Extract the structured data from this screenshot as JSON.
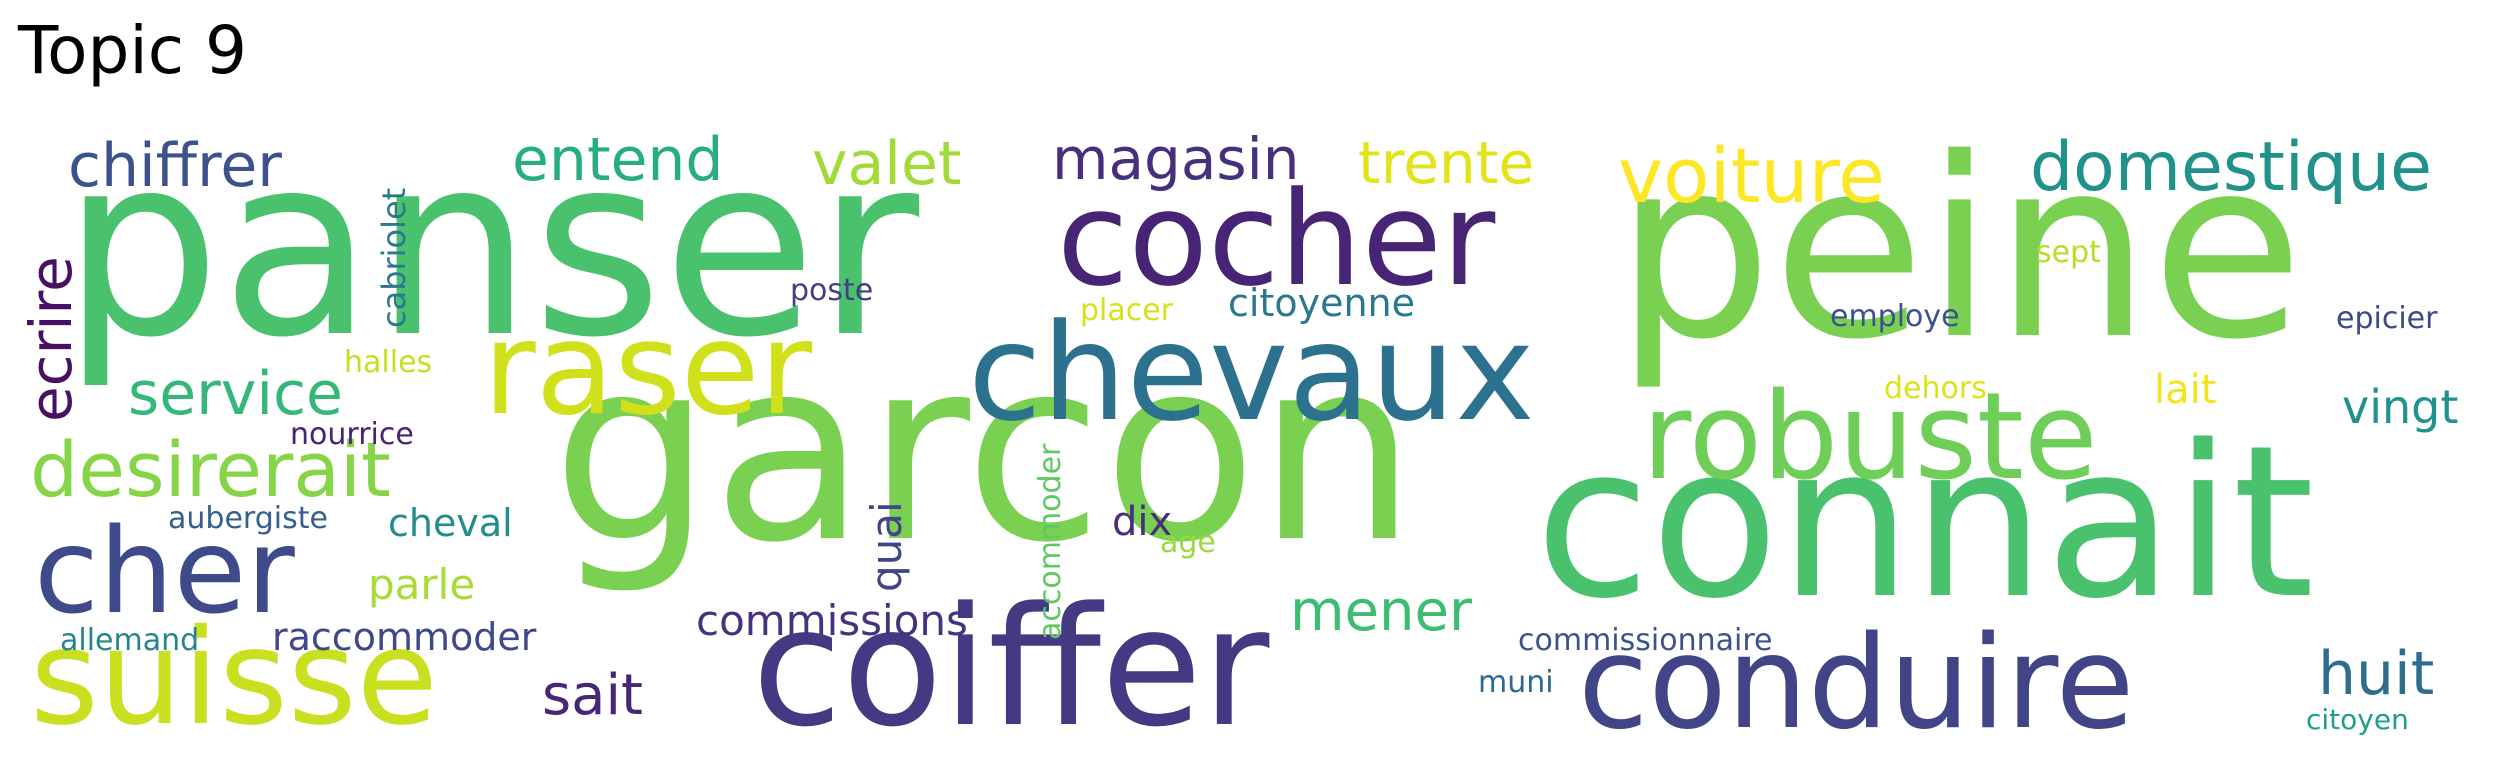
{
  "title": "Topic 9",
  "words": {
    "panser": {
      "text": "panser",
      "color": "#4ac16d"
    },
    "peine": {
      "text": "peine",
      "color": "#7ad151"
    },
    "garcon": {
      "text": "garcon",
      "color": "#7ad151"
    },
    "connait": {
      "text": "connait",
      "color": "#4ac16d"
    },
    "coiffer": {
      "text": "coiffer",
      "color": "#443983"
    },
    "conduire": {
      "text": "conduire",
      "color": "#414487"
    },
    "chevaux": {
      "text": "chevaux",
      "color": "#2c728e"
    },
    "cocher": {
      "text": "cocher",
      "color": "#482475"
    },
    "raser": {
      "text": "raser",
      "color": "#d0e11c"
    },
    "robuste": {
      "text": "robuste",
      "color": "#6ece58"
    },
    "suisse": {
      "text": "suisse",
      "color": "#c8e020"
    },
    "cher": {
      "text": "cher",
      "color": "#3e4a89"
    },
    "voiture": {
      "text": "voiture",
      "color": "#fde725"
    },
    "domestique": {
      "text": "domestique",
      "color": "#21918c"
    },
    "desirerait": {
      "text": "desirerait",
      "color": "#86d549"
    },
    "service": {
      "text": "service",
      "color": "#35b779"
    },
    "chiffrer": {
      "text": "chiffrer",
      "color": "#3b528b"
    },
    "entend": {
      "text": "entend",
      "color": "#27ad81"
    },
    "valet": {
      "text": "valet",
      "color": "#a2da37"
    },
    "magasin": {
      "text": "magasin",
      "color": "#46307e"
    },
    "trente": {
      "text": "trente",
      "color": "#e2e418"
    },
    "ecrire": {
      "text": "ecrire",
      "color": "#471063"
    },
    "mener": {
      "text": "mener",
      "color": "#3dbc74"
    },
    "huit": {
      "text": "huit",
      "color": "#2f6c8e"
    },
    "sait": {
      "text": "sait",
      "color": "#482677"
    },
    "commissions": {
      "text": "commissions",
      "color": "#46327e"
    },
    "raccommoder": {
      "text": "raccommoder",
      "color": "#3e4989"
    },
    "cheval": {
      "text": "cheval",
      "color": "#228d8d"
    },
    "citoyenne": {
      "text": "citoyenne",
      "color": "#2a788e"
    },
    "vingt": {
      "text": "vingt",
      "color": "#21918c"
    },
    "parle": {
      "text": "parle",
      "color": "#a8db34"
    },
    "quai": {
      "text": "quai",
      "color": "#414487"
    },
    "dix": {
      "text": "dix",
      "color": "#472f7d"
    },
    "lait": {
      "text": "lait",
      "color": "#f1e51d"
    },
    "cabriolet": {
      "text": "cabriolet",
      "color": "#2a788e"
    },
    "poste": {
      "text": "poste",
      "color": "#433e85"
    },
    "placer": {
      "text": "placer",
      "color": "#d5e21a"
    },
    "halles": {
      "text": "halles",
      "color": "#c5e021"
    },
    "nourrice": {
      "text": "nourrice",
      "color": "#482475"
    },
    "aubergiste": {
      "text": "aubergiste",
      "color": "#355f8d"
    },
    "allemand": {
      "text": "allemand",
      "color": "#25848e"
    },
    "accommoder": {
      "text": "accommoder",
      "color": "#5ec962"
    },
    "age": {
      "text": "age",
      "color": "#9bd93c"
    },
    "commissionnaire": {
      "text": "commissionnaire",
      "color": "#3b528b"
    },
    "muni": {
      "text": "muni",
      "color": "#31688e"
    },
    "employe": {
      "text": "employe",
      "color": "#3b528b"
    },
    "epicier": {
      "text": "epicier",
      "color": "#3e4989"
    },
    "sept": {
      "text": "sept",
      "color": "#b8de29"
    },
    "dehors": {
      "text": "dehors",
      "color": "#dde318"
    },
    "citoyen": {
      "text": "citoyen",
      "color": "#1f9e89"
    }
  }
}
